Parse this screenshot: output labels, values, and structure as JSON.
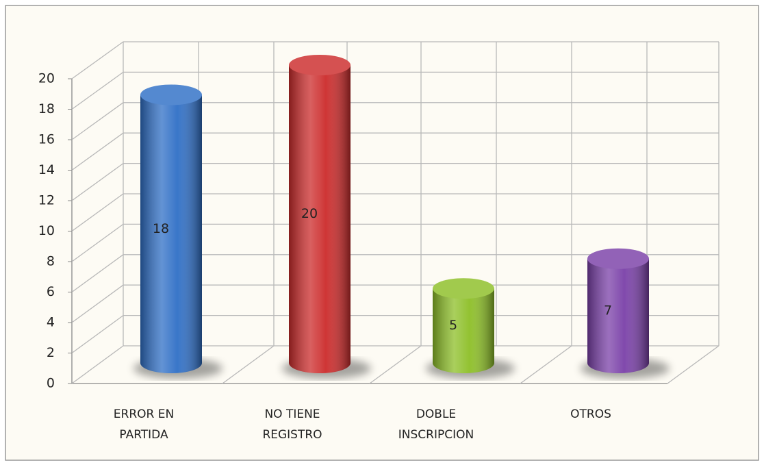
{
  "chart_data": {
    "type": "bar3d",
    "categories": [
      "ERROR EN PARTIDA",
      "NO TIENE REGISTRO",
      "DOBLE INSCRIPCION",
      "OTROS"
    ],
    "values": [
      18,
      20,
      5,
      7
    ],
    "colors": [
      "#2f6fc6",
      "#cc2b2b",
      "#8dbf27",
      "#7a40a8"
    ],
    "ylim": [
      0,
      20
    ],
    "yticks": [
      0,
      2,
      4,
      6,
      8,
      10,
      12,
      14,
      16,
      18,
      20
    ],
    "grid": true
  }
}
